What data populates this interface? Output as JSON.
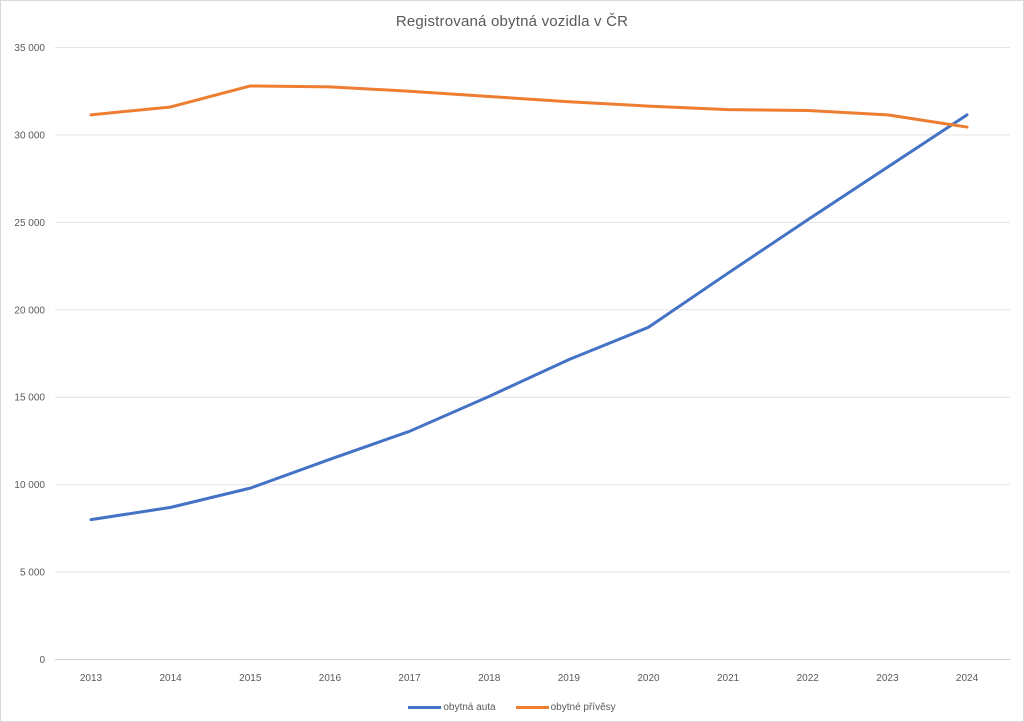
{
  "chart_title": "Registrovaná obytná vozidla v ČR",
  "chart_data": {
    "type": "line",
    "title": "Registrovaná obytná vozidla v ČR",
    "categories": [
      "2013",
      "2014",
      "2015",
      "2016",
      "2017",
      "2018",
      "2019",
      "2020",
      "2021",
      "2022",
      "2023",
      "2024"
    ],
    "series": [
      {
        "name": "obytná auta",
        "color": "#4472C4",
        "values": [
          8000,
          8700,
          9800,
          11450,
          13050,
          15050,
          17150,
          19000,
          22100,
          25150,
          28150,
          31150
        ]
      },
      {
        "name": "obytné přívěsy",
        "color": "#ED7D31",
        "values": [
          31150,
          31600,
          32800,
          32750,
          32500,
          32200,
          31900,
          31650,
          31450,
          31400,
          31150,
          30450
        ]
      }
    ],
    "ylim": [
      0,
      35000
    ],
    "y_ticks": [
      0,
      5000,
      10000,
      15000,
      20000,
      25000,
      30000,
      35000
    ],
    "y_tick_labels": [
      "0",
      "5 000",
      "10 000",
      "15 000",
      "20 000",
      "25 000",
      "30 000",
      "35 000"
    ],
    "grid": true,
    "legend_position": "bottom",
    "colors": {
      "gridline": "#E4E4E4",
      "axis_line": "#D0D0D0",
      "tick_text": "#595959",
      "title_text": "#595959"
    }
  }
}
